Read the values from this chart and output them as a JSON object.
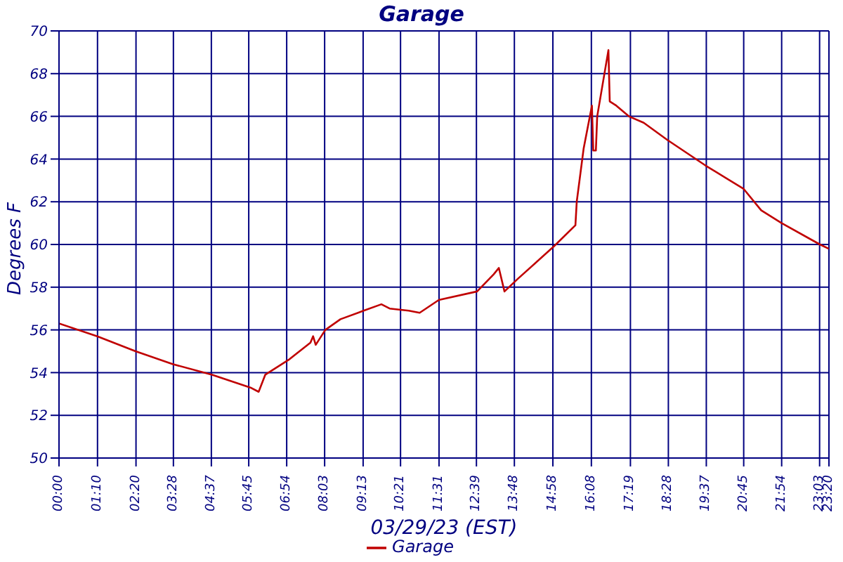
{
  "chart_data": {
    "type": "line",
    "title": "Garage",
    "xlabel": "03/29/23 (EST)",
    "ylabel": "Degrees F",
    "x": [
      0,
      1.16,
      2.32,
      3.44,
      4.64,
      5.8,
      6.05,
      6.25,
      6.96,
      7.62,
      7.7,
      7.78,
      8.07,
      8.53,
      9.23,
      9.77,
      10.02,
      10.6,
      10.93,
      11.51,
      12.67,
      13.17,
      13.33,
      13.5,
      13.91,
      14.99,
      15.65,
      15.69,
      15.9,
      16.15,
      16.19,
      16.27,
      16.31,
      16.65,
      16.69,
      16.89,
      17.27,
      17.72,
      18.43,
      19.59,
      20.75,
      21.28,
      21.9,
      23.06,
      23.33
    ],
    "series": [
      {
        "name": "Garage",
        "color": "#c00000",
        "values": [
          56.3,
          55.7,
          55.0,
          54.4,
          53.9,
          53.3,
          53.1,
          53.9,
          54.6,
          55.4,
          55.7,
          55.3,
          56.0,
          56.5,
          56.9,
          57.2,
          57.0,
          56.9,
          56.8,
          57.4,
          57.8,
          58.6,
          58.9,
          57.8,
          58.4,
          59.9,
          60.9,
          62.0,
          64.5,
          66.5,
          64.4,
          64.4,
          66.0,
          69.1,
          66.7,
          66.5,
          66.0,
          65.7,
          64.9,
          63.7,
          62.6,
          61.6,
          61.0,
          60.0,
          59.8
        ]
      }
    ],
    "xlim": [
      0,
      23.3333
    ],
    "xticks": [
      {
        "value": 0,
        "label": "00:00"
      },
      {
        "value": 1.1667,
        "label": "01:10"
      },
      {
        "value": 2.3333,
        "label": "02:20"
      },
      {
        "value": 3.4667,
        "label": "03:28"
      },
      {
        "value": 4.6167,
        "label": "04:37"
      },
      {
        "value": 5.75,
        "label": "05:45"
      },
      {
        "value": 6.9,
        "label": "06:54"
      },
      {
        "value": 8.05,
        "label": "08:03"
      },
      {
        "value": 9.2167,
        "label": "09:13"
      },
      {
        "value": 10.35,
        "label": "10:21"
      },
      {
        "value": 11.5167,
        "label": "11:31"
      },
      {
        "value": 12.65,
        "label": "12:39"
      },
      {
        "value": 13.8,
        "label": "13:48"
      },
      {
        "value": 14.9667,
        "label": "14:58"
      },
      {
        "value": 16.1333,
        "label": "16:08"
      },
      {
        "value": 17.3167,
        "label": "17:19"
      },
      {
        "value": 18.4667,
        "label": "18:28"
      },
      {
        "value": 19.6167,
        "label": "19:37"
      },
      {
        "value": 20.75,
        "label": "20:45"
      },
      {
        "value": 21.9,
        "label": "21:54"
      },
      {
        "value": 23.05,
        "label": "23:03"
      },
      {
        "value": 23.3333,
        "label": "23:20"
      }
    ],
    "ylim": [
      50,
      70
    ],
    "yticks": [
      50,
      52,
      54,
      56,
      58,
      60,
      62,
      64,
      66,
      68,
      70
    ],
    "grid": true,
    "legend": "bottom",
    "marker": "none",
    "line_style": "solid"
  }
}
